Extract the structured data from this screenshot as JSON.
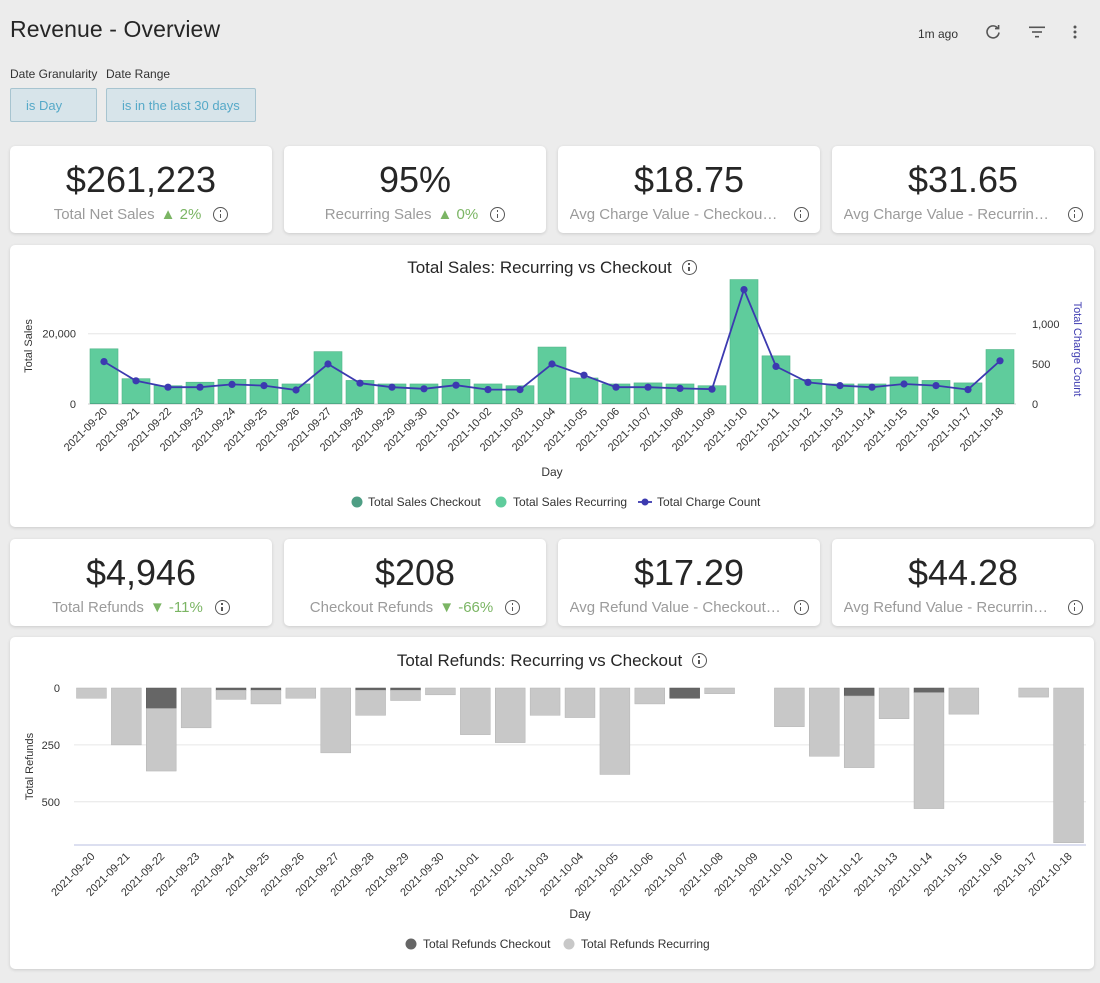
{
  "header": {
    "title": "Revenue - Overview",
    "updated": "1m ago",
    "icons": [
      "refresh-icon",
      "filter-icon",
      "more-vert-icon"
    ]
  },
  "filters": [
    {
      "label": "Date Granularity",
      "value": "is Day"
    },
    {
      "label": "Date Range",
      "value": "is in the last 30 days"
    }
  ],
  "kpis_top": [
    {
      "value": "$261,223",
      "label": "Total Net Sales",
      "change": "▲ 2%"
    },
    {
      "value": "95%",
      "label": "Recurring Sales",
      "change": "▲ 0%"
    },
    {
      "value": "$18.75",
      "label": "Avg Charge Value - Checkout Sales",
      "change": ""
    },
    {
      "value": "$31.65",
      "label": "Avg Charge Value - Recurring Sales",
      "change": ""
    }
  ],
  "kpis_bottom": [
    {
      "value": "$4,946",
      "label": "Total Refunds",
      "change": "▼ -11%"
    },
    {
      "value": "$208",
      "label": "Checkout Refunds",
      "change": "▼ -66%"
    },
    {
      "value": "$17.29",
      "label": "Avg Refund Value - Checkout Refunds",
      "change": ""
    },
    {
      "value": "$44.28",
      "label": "Avg Refund Value - Recurring Refunds",
      "change": ""
    }
  ],
  "colors": {
    "checkout": "#4e9e84",
    "recurring": "#5fcc9c",
    "charge_count": "#3c3ab0",
    "refund_checkout": "#666666",
    "refund_recurring": "#c8c8c8",
    "positive_change": "#7bb564",
    "filter_text": "#56a9c8"
  },
  "chart_data": [
    {
      "type": "bar",
      "title": "Total Sales: Recurring vs Checkout",
      "xlabel": "Day",
      "ylabel": "Total Sales",
      "y2label": "Total Charge Count",
      "ylim": [
        0,
        33000
      ],
      "y2lim": [
        0,
        1450
      ],
      "yticks": [
        0,
        20000
      ],
      "yticklabels": [
        "0",
        "20,000"
      ],
      "y2ticks": [
        0,
        500,
        1000
      ],
      "y2ticklabels": [
        "0",
        "500",
        "1,000"
      ],
      "grid": true,
      "legend": "bottom",
      "categories": [
        "2021-09-20",
        "2021-09-21",
        "2021-09-22",
        "2021-09-23",
        "2021-09-24",
        "2021-09-25",
        "2021-09-26",
        "2021-09-27",
        "2021-09-28",
        "2021-09-29",
        "2021-09-30",
        "2021-10-01",
        "2021-10-02",
        "2021-10-03",
        "2021-10-04",
        "2021-10-05",
        "2021-10-06",
        "2021-10-07",
        "2021-10-08",
        "2021-10-09",
        "2021-10-10",
        "2021-10-11",
        "2021-10-12",
        "2021-10-13",
        "2021-10-14",
        "2021-10-15",
        "2021-10-16",
        "2021-10-17",
        "2021-10-18"
      ],
      "series": [
        {
          "name": "Total Sales Checkout",
          "kind": "bar",
          "values": [
            200,
            200,
            200,
            200,
            200,
            200,
            200,
            200,
            200,
            200,
            200,
            200,
            200,
            200,
            200,
            200,
            200,
            200,
            200,
            200,
            200,
            200,
            200,
            200,
            200,
            200,
            200,
            200,
            200
          ]
        },
        {
          "name": "Total Sales Recurring",
          "kind": "bar",
          "values": [
            15500,
            7000,
            5000,
            6000,
            6800,
            6800,
            5500,
            14700,
            6500,
            5500,
            5500,
            6800,
            5500,
            5000,
            16000,
            7200,
            5500,
            5800,
            5500,
            5000,
            35200,
            13500,
            6800,
            5500,
            5500,
            7500,
            6500,
            5800,
            15300
          ]
        },
        {
          "name": "Total Charge Count",
          "kind": "line",
          "axis": "right",
          "values": [
            530,
            290,
            210,
            210,
            245,
            230,
            175,
            500,
            260,
            210,
            190,
            235,
            180,
            180,
            500,
            360,
            210,
            210,
            195,
            185,
            1430,
            470,
            270,
            230,
            210,
            250,
            230,
            180,
            540
          ]
        }
      ]
    },
    {
      "type": "bar",
      "title": "Total Refunds: Recurring vs Checkout",
      "xlabel": "Day",
      "ylabel": "Total Refunds",
      "ylim": [
        0,
        690
      ],
      "yaxis": "inverted",
      "yticks": [
        0,
        250,
        500
      ],
      "yticklabels": [
        "0",
        "250",
        "500"
      ],
      "grid": true,
      "legend": "bottom",
      "categories": [
        "2021-09-20",
        "2021-09-21",
        "2021-09-22",
        "2021-09-23",
        "2021-09-24",
        "2021-09-25",
        "2021-09-26",
        "2021-09-27",
        "2021-09-28",
        "2021-09-29",
        "2021-09-30",
        "2021-10-01",
        "2021-10-02",
        "2021-10-03",
        "2021-10-04",
        "2021-10-05",
        "2021-10-06",
        "2021-10-07",
        "2021-10-08",
        "2021-10-09",
        "2021-10-10",
        "2021-10-11",
        "2021-10-12",
        "2021-10-13",
        "2021-10-14",
        "2021-10-15",
        "2021-10-16",
        "2021-10-17",
        "2021-10-18"
      ],
      "series": [
        {
          "name": "Total Refunds Checkout",
          "values": [
            0,
            0,
            90,
            0,
            10,
            10,
            0,
            0,
            10,
            10,
            0,
            0,
            0,
            0,
            0,
            0,
            0,
            45,
            0,
            0,
            0,
            0,
            35,
            0,
            20,
            0,
            0,
            0,
            0
          ]
        },
        {
          "name": "Total Refunds Recurring",
          "values": [
            45,
            250,
            275,
            175,
            40,
            60,
            45,
            285,
            110,
            45,
            30,
            205,
            240,
            120,
            130,
            380,
            70,
            0,
            25,
            0,
            170,
            300,
            315,
            135,
            510,
            115,
            0,
            40,
            680
          ]
        }
      ]
    }
  ]
}
